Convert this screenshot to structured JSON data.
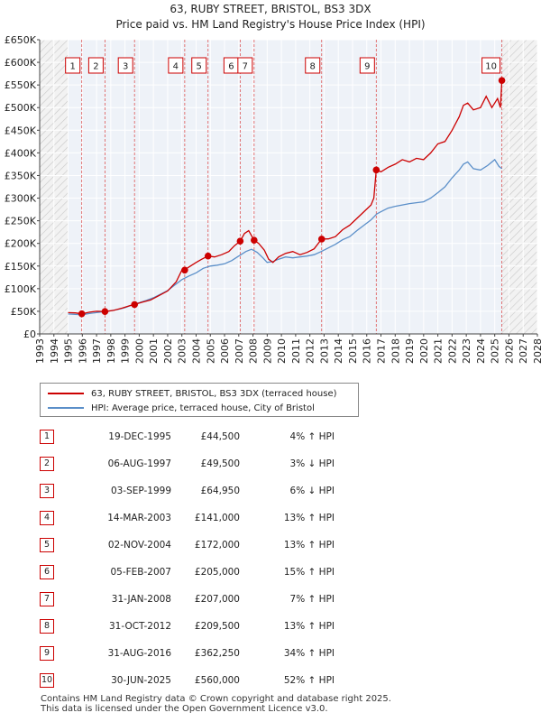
{
  "chart_data": {
    "type": "line",
    "title": "63, RUBY STREET, BRISTOL, BS3 3DX",
    "subtitle": "Price paid vs. HM Land Registry's House Price Index (HPI)",
    "xlim": [
      1993,
      2028
    ],
    "ylim": [
      0,
      650000
    ],
    "x_ticks": [
      1993,
      1994,
      1995,
      1996,
      1997,
      1998,
      1999,
      2000,
      2001,
      2002,
      2003,
      2004,
      2005,
      2006,
      2007,
      2008,
      2009,
      2010,
      2011,
      2012,
      2013,
      2014,
      2015,
      2016,
      2017,
      2018,
      2019,
      2020,
      2021,
      2022,
      2023,
      2024,
      2025,
      2026,
      2027,
      2028
    ],
    "y_ticks": [
      {
        "value": 0,
        "label": "£0"
      },
      {
        "value": 50000,
        "label": "£50K"
      },
      {
        "value": 100000,
        "label": "£100K"
      },
      {
        "value": 150000,
        "label": "£150K"
      },
      {
        "value": 200000,
        "label": "£200K"
      },
      {
        "value": 250000,
        "label": "£250K"
      },
      {
        "value": 300000,
        "label": "£300K"
      },
      {
        "value": 350000,
        "label": "£350K"
      },
      {
        "value": 400000,
        "label": "£400K"
      },
      {
        "value": 450000,
        "label": "£450K"
      },
      {
        "value": 500000,
        "label": "£500K"
      },
      {
        "value": 550000,
        "label": "£550K"
      },
      {
        "value": 600000,
        "label": "£600K"
      },
      {
        "value": 650000,
        "label": "£650K"
      }
    ],
    "series": [
      {
        "name": "63, RUBY STREET, BRISTOL, BS3 3DX (terraced house)",
        "color": "#cc0000",
        "x": [
          1995.0,
          1995.5,
          1995.96,
          1996.5,
          1997.0,
          1997.59,
          1998.2,
          1998.8,
          1999.3,
          1999.67,
          2000.2,
          2000.8,
          2001.4,
          2002.0,
          2002.6,
          2003.0,
          2003.2,
          2003.6,
          2004.0,
          2004.4,
          2004.84,
          2005.3,
          2005.8,
          2006.3,
          2006.7,
          2007.1,
          2007.4,
          2007.7,
          2008.08,
          2008.4,
          2008.8,
          2009.1,
          2009.4,
          2009.8,
          2010.3,
          2010.8,
          2011.3,
          2011.8,
          2012.3,
          2012.83,
          2013.3,
          2013.8,
          2014.3,
          2014.8,
          2015.3,
          2015.8,
          2016.3,
          2016.5,
          2016.67,
          2017.0,
          2017.5,
          2018.0,
          2018.5,
          2019.0,
          2019.5,
          2020.0,
          2020.5,
          2021.0,
          2021.5,
          2022.0,
          2022.5,
          2022.8,
          2023.1,
          2023.5,
          2024.0,
          2024.4,
          2024.8,
          2025.0,
          2025.2,
          2025.4,
          2025.5,
          2025.6
        ],
        "y": [
          47000,
          46500,
          44500,
          48000,
          50000,
          49500,
          52000,
          57000,
          62000,
          64950,
          70000,
          75000,
          85000,
          95000,
          115000,
          141000,
          142000,
          150000,
          158000,
          165000,
          172000,
          170000,
          175000,
          182000,
          195000,
          205000,
          222000,
          228000,
          207000,
          200000,
          185000,
          165000,
          158000,
          170000,
          178000,
          182000,
          175000,
          180000,
          188000,
          209500,
          210000,
          215000,
          230000,
          240000,
          255000,
          270000,
          285000,
          300000,
          362250,
          358000,
          368000,
          375000,
          385000,
          380000,
          388000,
          385000,
          400000,
          420000,
          425000,
          450000,
          480000,
          505000,
          510000,
          495000,
          500000,
          525000,
          500000,
          510000,
          520000,
          500000,
          560000,
          560000
        ]
      },
      {
        "name": "HPI: Average price, terraced house, City of Bristol",
        "color": "#5b8fc9",
        "x": [
          1995.0,
          1995.5,
          1996.0,
          1996.5,
          1997.0,
          1997.5,
          1998.0,
          1998.5,
          1999.0,
          1999.5,
          2000.0,
          2000.5,
          2001.0,
          2001.5,
          2002.0,
          2002.5,
          2003.0,
          2003.5,
          2004.0,
          2004.5,
          2005.0,
          2005.5,
          2006.0,
          2006.5,
          2007.0,
          2007.5,
          2007.9,
          2008.3,
          2008.7,
          2009.0,
          2009.4,
          2009.8,
          2010.3,
          2010.8,
          2011.3,
          2011.8,
          2012.3,
          2012.8,
          2013.3,
          2013.8,
          2014.3,
          2014.8,
          2015.3,
          2015.8,
          2016.3,
          2016.7,
          2017.0,
          2017.5,
          2018.0,
          2018.5,
          2019.0,
          2019.5,
          2020.0,
          2020.5,
          2021.0,
          2021.5,
          2022.0,
          2022.5,
          2022.8,
          2023.1,
          2023.5,
          2024.0,
          2024.5,
          2025.0,
          2025.3,
          2025.5
        ],
        "y": [
          44000,
          43000,
          42500,
          45000,
          47000,
          49000,
          51000,
          54000,
          58000,
          64000,
          69000,
          74000,
          80000,
          88000,
          96000,
          108000,
          120000,
          128000,
          135000,
          145000,
          150000,
          152000,
          155000,
          162000,
          172000,
          182000,
          187000,
          180000,
          168000,
          158000,
          160000,
          165000,
          170000,
          168000,
          170000,
          172000,
          175000,
          182000,
          190000,
          198000,
          208000,
          215000,
          228000,
          240000,
          252000,
          265000,
          270000,
          278000,
          282000,
          285000,
          288000,
          290000,
          292000,
          300000,
          312000,
          325000,
          345000,
          362000,
          375000,
          380000,
          365000,
          362000,
          372000,
          385000,
          370000,
          365000
        ]
      }
    ],
    "sales": [
      {
        "label": "1",
        "x": 1995.96,
        "y": 44500
      },
      {
        "label": "2",
        "x": 1997.59,
        "y": 49500
      },
      {
        "label": "3",
        "x": 1999.67,
        "y": 64950
      },
      {
        "label": "4",
        "x": 2003.2,
        "y": 141000
      },
      {
        "label": "5",
        "x": 2004.84,
        "y": 172000
      },
      {
        "label": "6",
        "x": 2007.1,
        "y": 205000
      },
      {
        "label": "7",
        "x": 2008.08,
        "y": 207000
      },
      {
        "label": "8",
        "x": 2012.83,
        "y": 209500
      },
      {
        "label": "9",
        "x": 2016.67,
        "y": 362250
      },
      {
        "label": "10",
        "x": 2025.5,
        "y": 560000
      }
    ],
    "shaded_regions": [
      {
        "from": 1993,
        "to": 1995.0,
        "style": "hatched"
      },
      {
        "from": 2025.5,
        "to": 2028,
        "style": "hatched"
      }
    ]
  },
  "legend": {
    "items": [
      {
        "label": "63, RUBY STREET, BRISTOL, BS3 3DX (terraced house)",
        "color": "#cc0000"
      },
      {
        "label": "HPI: Average price, terraced house, City of Bristol",
        "color": "#5b8fc9"
      }
    ]
  },
  "transactions": [
    {
      "num": "1",
      "date": "19-DEC-1995",
      "price": "£44,500",
      "hpi": "4% ↑ HPI"
    },
    {
      "num": "2",
      "date": "06-AUG-1997",
      "price": "£49,500",
      "hpi": "3% ↓ HPI"
    },
    {
      "num": "3",
      "date": "03-SEP-1999",
      "price": "£64,950",
      "hpi": "6% ↓ HPI"
    },
    {
      "num": "4",
      "date": "14-MAR-2003",
      "price": "£141,000",
      "hpi": "13% ↑ HPI"
    },
    {
      "num": "5",
      "date": "02-NOV-2004",
      "price": "£172,000",
      "hpi": "13% ↑ HPI"
    },
    {
      "num": "6",
      "date": "05-FEB-2007",
      "price": "£205,000",
      "hpi": "15% ↑ HPI"
    },
    {
      "num": "7",
      "date": "31-JAN-2008",
      "price": "£207,000",
      "hpi": "7% ↑ HPI"
    },
    {
      "num": "8",
      "date": "31-OCT-2012",
      "price": "£209,500",
      "hpi": "13% ↑ HPI"
    },
    {
      "num": "9",
      "date": "31-AUG-2016",
      "price": "£362,250",
      "hpi": "34% ↑ HPI"
    },
    {
      "num": "10",
      "date": "30-JUN-2025",
      "price": "£560,000",
      "hpi": "52% ↑ HPI"
    }
  ],
  "footer": {
    "line1": "Contains HM Land Registry data © Crown copyright and database right 2025.",
    "line2": "This data is licensed under the Open Government Licence v3.0."
  }
}
